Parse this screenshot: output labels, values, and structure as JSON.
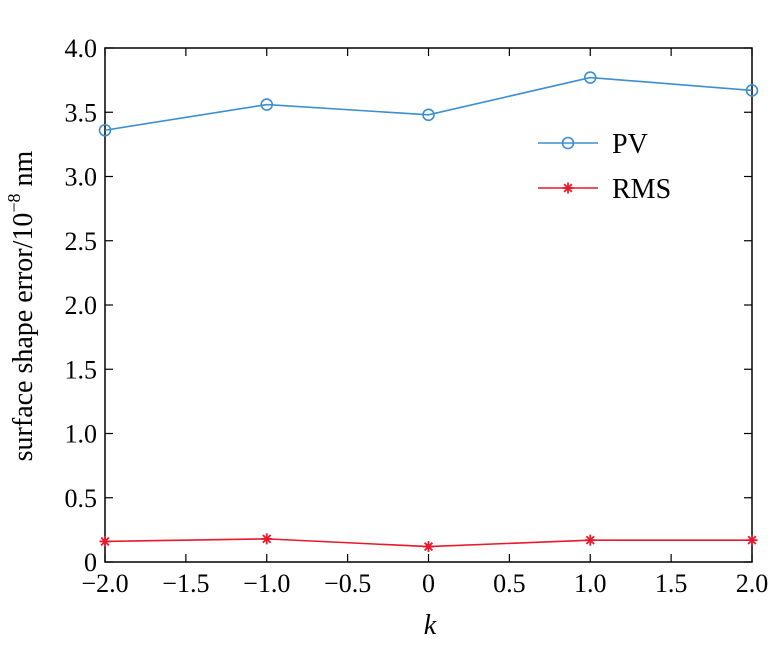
{
  "chart_data": {
    "type": "line",
    "x": [
      -2.0,
      -1.0,
      0,
      1.0,
      2.0
    ],
    "xlabel": "k",
    "ylabel": "surface shape error/10",
    "ylabel_sup": "−8",
    "ylabel_unit": " nm",
    "xlim": [
      -2.0,
      2.0
    ],
    "ylim": [
      0,
      4.0
    ],
    "xticks": [
      "−2.0",
      "−1.5",
      "−1.0",
      "−0.5",
      "0",
      "0.5",
      "1.0",
      "1.5",
      "2.0"
    ],
    "yticks": [
      "0",
      "0.5",
      "1.0",
      "1.5",
      "2.0",
      "2.5",
      "3.0",
      "3.5",
      "4.0"
    ],
    "grid": false,
    "legend_position": "top-right",
    "series": [
      {
        "name": "PV",
        "values": [
          3.36,
          3.56,
          3.48,
          3.77,
          3.67
        ],
        "color": "#3b8fd0",
        "marker": "circle"
      },
      {
        "name": "RMS",
        "values": [
          0.16,
          0.18,
          0.12,
          0.17,
          0.17
        ],
        "color": "#e8192c",
        "marker": "asterisk"
      }
    ]
  }
}
